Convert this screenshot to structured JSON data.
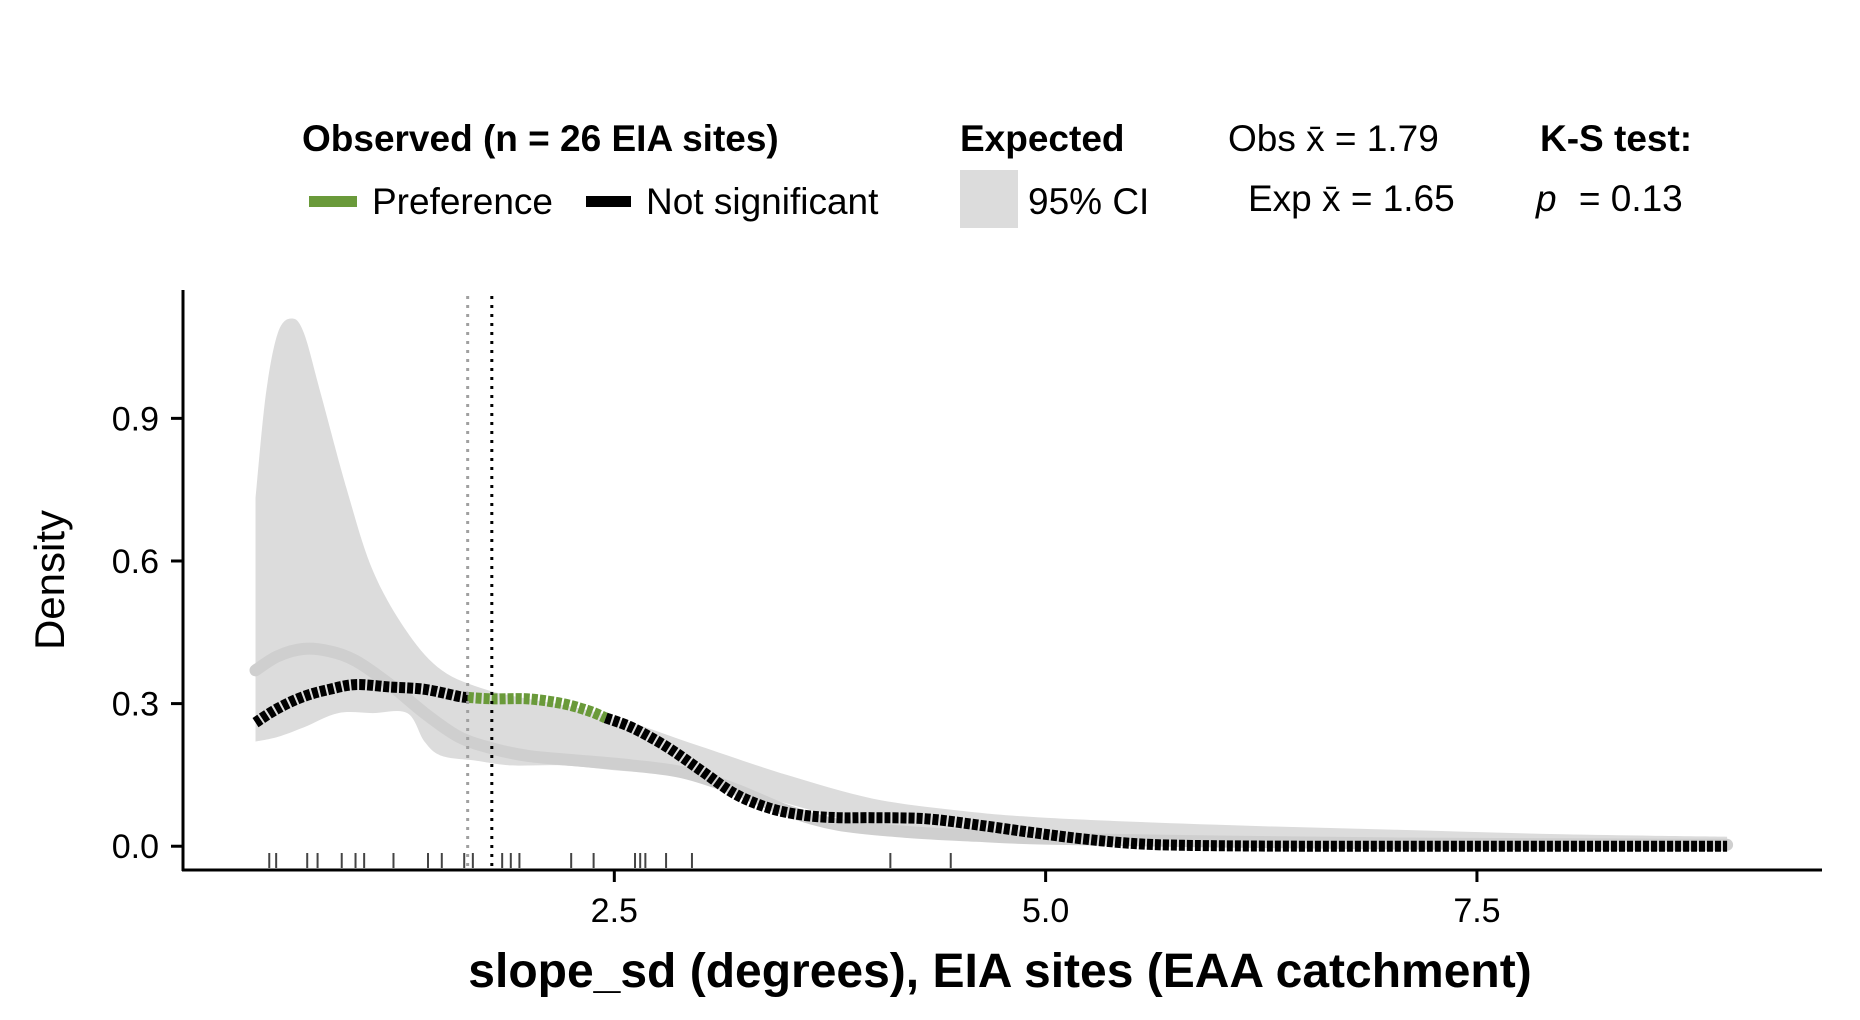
{
  "chart_data": {
    "type": "line",
    "xlabel": "slope_sd (degrees), EIA sites (EAA catchment)",
    "ylabel": "Density",
    "xlim": [
      0,
      9.5
    ],
    "ylim": [
      -0.05,
      1.17
    ],
    "x_ticks": [
      2.5,
      5.0,
      7.5
    ],
    "x_tick_labels": [
      "2.5",
      "5.0",
      "7.5"
    ],
    "y_ticks": [
      0.0,
      0.3,
      0.6,
      0.9
    ],
    "y_tick_labels": [
      "0.0",
      "0.3",
      "0.6",
      "0.9"
    ],
    "legend": {
      "observed_title": "Observed (n = 26 EIA sites)",
      "observed_items": [
        {
          "label": "Preference",
          "color": "#6a9a3a"
        },
        {
          "label": "Not significant",
          "color": "#000000"
        }
      ],
      "expected_title": "Expected",
      "expected_item": {
        "label": "95% CI",
        "color": "#dcdcdc"
      },
      "obs_mean_text": "Obs x̄ = 1.79",
      "exp_mean_text": "Exp x̄ = 1.65",
      "ks_title": "K-S test:",
      "ks_p_symbol": "p",
      "ks_p_value": "= 0.13"
    },
    "obs_mean": 1.79,
    "exp_mean": 1.65,
    "expected_ci_upper": [
      [
        0.42,
        0.73
      ],
      [
        0.48,
        0.95
      ],
      [
        0.55,
        1.08
      ],
      [
        0.63,
        1.11
      ],
      [
        0.7,
        1.08
      ],
      [
        0.8,
        0.95
      ],
      [
        0.95,
        0.75
      ],
      [
        1.1,
        0.58
      ],
      [
        1.3,
        0.45
      ],
      [
        1.5,
        0.37
      ],
      [
        1.75,
        0.33
      ],
      [
        2.0,
        0.31
      ],
      [
        2.3,
        0.29
      ],
      [
        2.6,
        0.26
      ],
      [
        3.0,
        0.21
      ],
      [
        3.5,
        0.15
      ],
      [
        4.0,
        0.1
      ],
      [
        4.5,
        0.075
      ],
      [
        5.0,
        0.06
      ],
      [
        6.0,
        0.045
      ],
      [
        7.0,
        0.035
      ],
      [
        8.0,
        0.025
      ],
      [
        8.95,
        0.02
      ]
    ],
    "expected_ci_lower": [
      [
        8.95,
        0.0
      ],
      [
        8.0,
        0.0
      ],
      [
        7.0,
        0.0
      ],
      [
        6.0,
        0.002
      ],
      [
        5.0,
        0.01
      ],
      [
        4.5,
        0.02
      ],
      [
        4.0,
        0.04
      ],
      [
        3.7,
        0.07
      ],
      [
        3.4,
        0.1
      ],
      [
        3.1,
        0.13
      ],
      [
        2.8,
        0.15
      ],
      [
        2.5,
        0.16
      ],
      [
        2.2,
        0.17
      ],
      [
        1.9,
        0.17
      ],
      [
        1.7,
        0.18
      ],
      [
        1.5,
        0.19
      ],
      [
        1.4,
        0.22
      ],
      [
        1.3,
        0.28
      ],
      [
        1.1,
        0.28
      ],
      [
        0.9,
        0.28
      ],
      [
        0.7,
        0.25
      ],
      [
        0.55,
        0.23
      ],
      [
        0.42,
        0.22
      ]
    ],
    "expected_mean_curve": [
      [
        0.42,
        0.37
      ],
      [
        0.55,
        0.4
      ],
      [
        0.7,
        0.415
      ],
      [
        0.85,
        0.41
      ],
      [
        1.0,
        0.39
      ],
      [
        1.2,
        0.34
      ],
      [
        1.4,
        0.28
      ],
      [
        1.6,
        0.23
      ],
      [
        1.8,
        0.205
      ],
      [
        2.0,
        0.19
      ],
      [
        2.3,
        0.18
      ],
      [
        2.6,
        0.17
      ],
      [
        2.9,
        0.155
      ],
      [
        3.2,
        0.12
      ],
      [
        3.5,
        0.075
      ],
      [
        3.8,
        0.045
      ],
      [
        4.2,
        0.03
      ],
      [
        4.6,
        0.022
      ],
      [
        5.0,
        0.016
      ],
      [
        6.0,
        0.01
      ],
      [
        7.0,
        0.006
      ],
      [
        8.0,
        0.004
      ],
      [
        8.95,
        0.003
      ]
    ],
    "series": [
      {
        "name": "Not significant",
        "color": "#000000",
        "points": [
          [
            0.42,
            0.26
          ],
          [
            0.55,
            0.29
          ],
          [
            0.7,
            0.315
          ],
          [
            0.85,
            0.33
          ],
          [
            1.0,
            0.34
          ],
          [
            1.2,
            0.335
          ],
          [
            1.4,
            0.33
          ],
          [
            1.6,
            0.315
          ],
          [
            1.65,
            0.313
          ]
        ]
      },
      {
        "name": "Preference",
        "color": "#6a9a3a",
        "points": [
          [
            1.65,
            0.313
          ],
          [
            1.8,
            0.31
          ],
          [
            2.0,
            0.31
          ],
          [
            2.2,
            0.3
          ],
          [
            2.35,
            0.285
          ],
          [
            2.45,
            0.27
          ]
        ]
      },
      {
        "name": "Not significant",
        "color": "#000000",
        "points": [
          [
            2.45,
            0.27
          ],
          [
            2.6,
            0.25
          ],
          [
            2.8,
            0.21
          ],
          [
            3.0,
            0.16
          ],
          [
            3.2,
            0.11
          ],
          [
            3.4,
            0.08
          ],
          [
            3.6,
            0.065
          ],
          [
            3.8,
            0.06
          ],
          [
            4.0,
            0.06
          ],
          [
            4.3,
            0.058
          ],
          [
            4.6,
            0.045
          ],
          [
            4.9,
            0.03
          ],
          [
            5.2,
            0.016
          ],
          [
            5.5,
            0.006
          ],
          [
            5.8,
            0.002
          ],
          [
            6.5,
            0.0
          ],
          [
            7.5,
            0.0
          ],
          [
            8.95,
            0.0
          ]
        ]
      }
    ],
    "rug_obs": [
      0.5,
      0.54,
      0.72,
      0.78,
      0.92,
      1.0,
      1.05,
      1.22,
      1.42,
      1.5,
      1.63,
      1.68,
      1.85,
      1.9,
      1.95,
      2.25,
      2.38,
      2.62,
      2.65,
      2.68,
      2.8,
      2.95
    ],
    "rug_exp": [
      4.1,
      4.45
    ]
  }
}
